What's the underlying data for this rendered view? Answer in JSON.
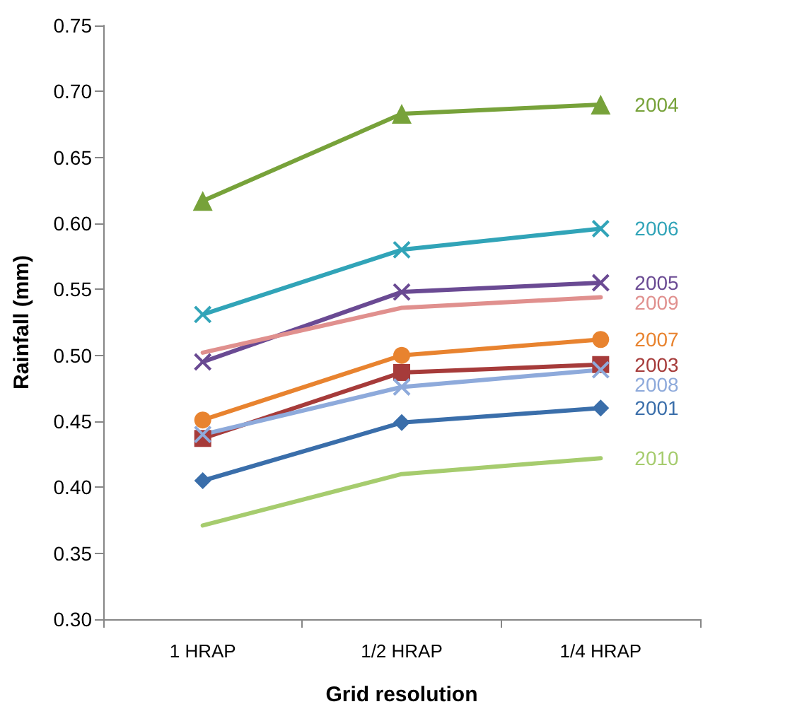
{
  "chart_data": {
    "type": "line",
    "xlabel": "Grid resolution",
    "ylabel": "Rainfall (mm)",
    "categories": [
      "1 HRAP",
      "1/2 HRAP",
      "1/4 HRAP"
    ],
    "ylim": [
      0.3,
      0.75
    ],
    "yticks": [
      {
        "value": 0.3,
        "label": "0.30"
      },
      {
        "value": 0.35,
        "label": "0.35"
      },
      {
        "value": 0.4,
        "label": "0.40"
      },
      {
        "value": 0.45,
        "label": "0.45"
      },
      {
        "value": 0.5,
        "label": "0.50"
      },
      {
        "value": 0.55,
        "label": "0.55"
      },
      {
        "value": 0.6,
        "label": "0.60"
      },
      {
        "value": 0.65,
        "label": "0.65"
      },
      {
        "value": 0.7,
        "label": "0.70"
      },
      {
        "value": 0.75,
        "label": "0.75"
      }
    ],
    "grid": false,
    "legend": false,
    "line_style": "solid",
    "series": [
      {
        "name": "2004",
        "color": "#77a23a",
        "marker": "triangle",
        "values": [
          0.617,
          0.683,
          0.69
        ]
      },
      {
        "name": "2006",
        "color": "#31a4b8",
        "marker": "cross",
        "values": [
          0.531,
          0.58,
          0.596
        ]
      },
      {
        "name": "2005",
        "color": "#6a4a93",
        "marker": "cross",
        "values": [
          0.495,
          0.548,
          0.555
        ]
      },
      {
        "name": "2009",
        "color": "#e0908e",
        "marker": "none",
        "values": [
          0.502,
          0.536,
          0.544
        ]
      },
      {
        "name": "2007",
        "color": "#e8832f",
        "marker": "circle",
        "values": [
          0.451,
          0.5,
          0.512
        ]
      },
      {
        "name": "2003",
        "color": "#a63b3a",
        "marker": "square",
        "values": [
          0.437,
          0.487,
          0.493
        ]
      },
      {
        "name": "2008",
        "color": "#8eaadb",
        "marker": "cross",
        "values": [
          0.44,
          0.476,
          0.489
        ]
      },
      {
        "name": "2001",
        "color": "#3a6eaa",
        "marker": "diamond",
        "values": [
          0.405,
          0.449,
          0.46
        ]
      },
      {
        "name": "2010",
        "color": "#a6cc6e",
        "marker": "none",
        "values": [
          0.371,
          0.41,
          0.422
        ]
      }
    ]
  }
}
